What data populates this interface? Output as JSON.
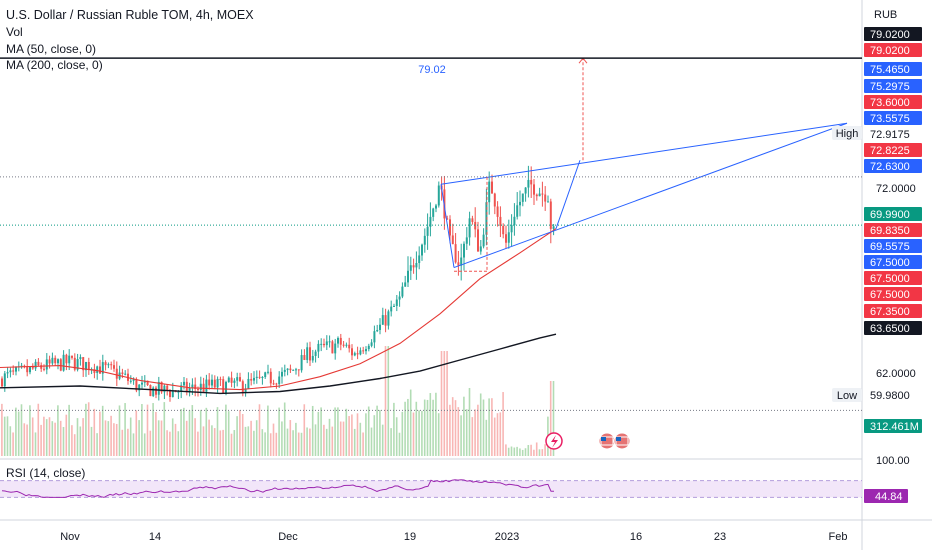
{
  "header": {
    "title": "U.S. Dollar / Russian Ruble TOM, 4h, MOEX",
    "vol": "Vol",
    "ma50": "MA (50, close, 0)",
    "ma200": "MA (200, close, 0)",
    "rsi": "RSI (14, close)"
  },
  "colors": {
    "up": "#26a69a",
    "down": "#ef5350",
    "ma50": "#e53935",
    "ma200": "#131722",
    "pattern": "#2962ff",
    "projection": "#ef5350",
    "rsi": "#9c27b0",
    "rsi_band": "#e9d5f5"
  },
  "chart_data": {
    "type": "candlestick",
    "price_axis": {
      "unit": "RUB",
      "ticks": [
        "72.0000",
        "62.0000"
      ]
    },
    "time_axis": {
      "labels": [
        "Nov",
        "14",
        "Dec",
        "19",
        "2023",
        "16",
        "23",
        "Feb"
      ]
    },
    "price_tags": [
      {
        "label": "79.0200",
        "value": 79.02,
        "bg": "#131722",
        "fg": "#ffffff"
      },
      {
        "label": "79.0200",
        "value": 79.02,
        "bg": "#f23645",
        "fg": "#ffffff"
      },
      {
        "label": "75.4650",
        "value": 75.465,
        "bg": "#2962ff",
        "fg": "#ffffff"
      },
      {
        "label": "75.2975",
        "value": 75.2975,
        "bg": "#2962ff",
        "fg": "#ffffff"
      },
      {
        "label": "73.6000",
        "value": 73.6,
        "bg": "#f23645",
        "fg": "#ffffff"
      },
      {
        "label": "73.5575",
        "value": 73.5575,
        "bg": "#2962ff",
        "fg": "#ffffff"
      },
      {
        "label": "72.9175",
        "value": 72.9175,
        "bg": "#ffffff",
        "fg": "#131722"
      },
      {
        "label": "72.8225",
        "value": 72.8225,
        "bg": "#f23645",
        "fg": "#ffffff"
      },
      {
        "label": "72.6300",
        "value": 72.63,
        "bg": "#2962ff",
        "fg": "#ffffff"
      },
      {
        "label": "69.9900",
        "value": 69.99,
        "bg": "#089981",
        "fg": "#ffffff"
      },
      {
        "label": "69.8350",
        "value": 69.835,
        "bg": "#f23645",
        "fg": "#ffffff"
      },
      {
        "label": "69.5575",
        "value": 69.5575,
        "bg": "#2962ff",
        "fg": "#ffffff"
      },
      {
        "label": "67.5000",
        "value": 67.5,
        "bg": "#2962ff",
        "fg": "#ffffff"
      },
      {
        "label": "67.5000",
        "value": 67.5,
        "bg": "#f23645",
        "fg": "#ffffff"
      },
      {
        "label": "67.5000",
        "value": 67.5,
        "bg": "#f23645",
        "fg": "#ffffff"
      },
      {
        "label": "67.3500",
        "value": 67.35,
        "bg": "#f23645",
        "fg": "#ffffff"
      },
      {
        "label": "63.6500",
        "value": 63.65,
        "bg": "#131722",
        "fg": "#ffffff"
      },
      {
        "label": "59.9800",
        "value": 59.98,
        "bg": "#ffffff",
        "fg": "#131722"
      },
      {
        "label": "312.461M",
        "value": null,
        "bg": "#089981",
        "fg": "#ffffff"
      }
    ],
    "high_label": "High",
    "high_value": 72.9175,
    "low_label": "Low",
    "low_value": 59.98,
    "last_close": 69.99,
    "projection_target_label": "79.02",
    "projection_target": 79.02,
    "rsi": {
      "value_label": "44.84",
      "value": 44.84,
      "scale_label": "100.00",
      "upper": 70,
      "lower": 30
    }
  }
}
